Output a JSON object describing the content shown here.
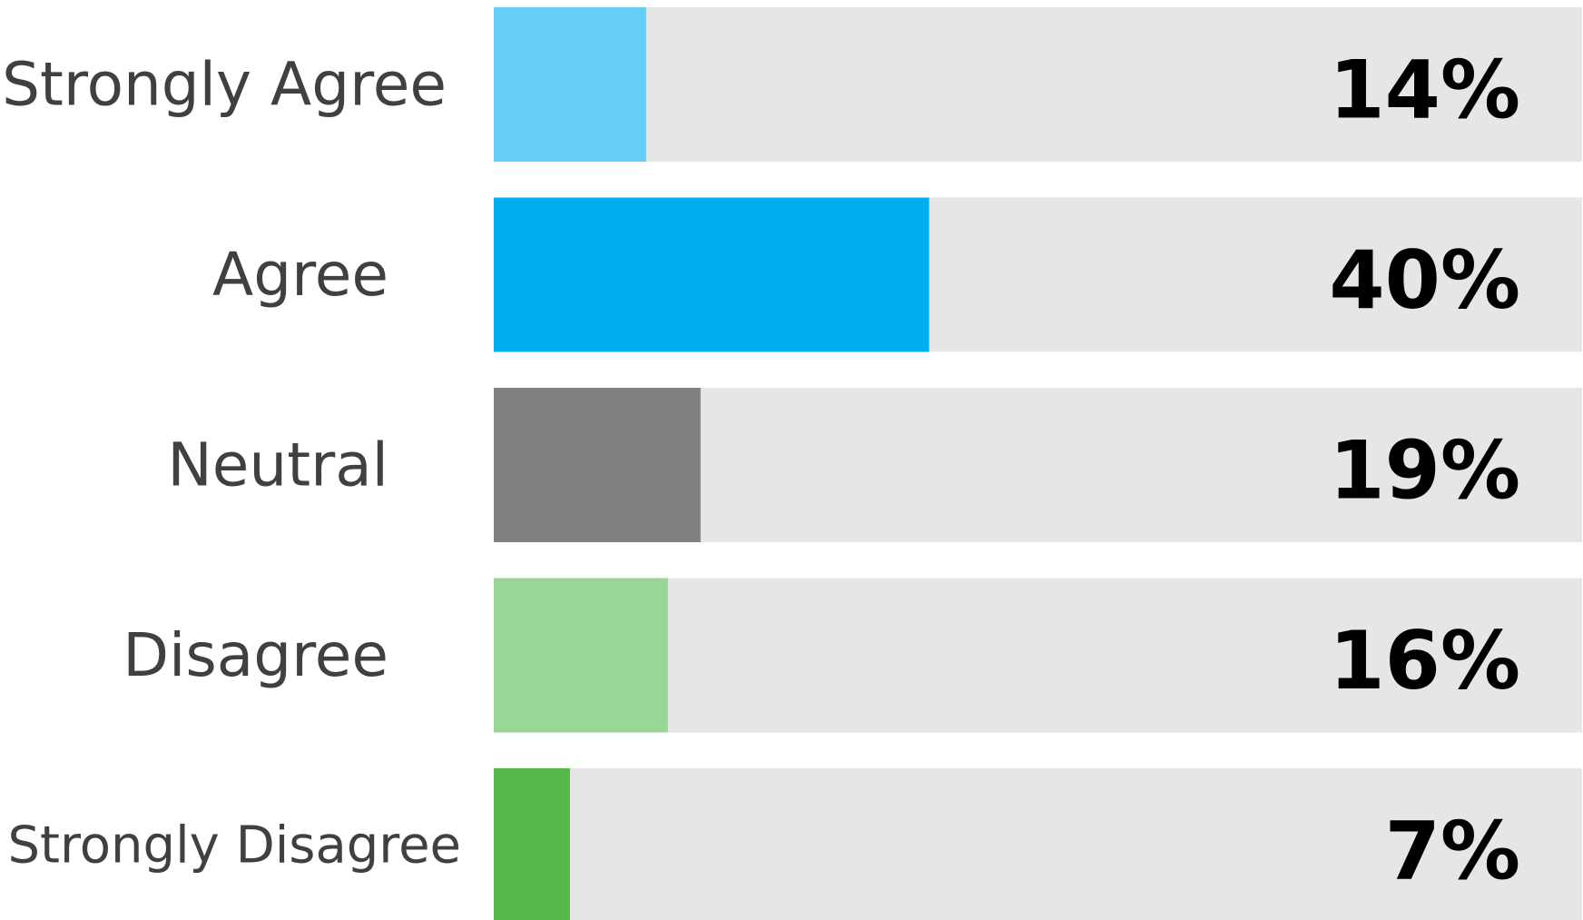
{
  "chart_data": {
    "type": "bar",
    "orientation": "horizontal",
    "categories": [
      "Strongly Agree",
      "Agree",
      "Neutral",
      "Disagree",
      "Strongly Disagree"
    ],
    "values": [
      14,
      40,
      19,
      16,
      7
    ],
    "value_labels": [
      "14%",
      "40%",
      "19%",
      "16%",
      "7%"
    ],
    "unit": "%",
    "xlim": [
      0,
      100
    ],
    "grid": false,
    "legend": "none",
    "title": "",
    "xlabel": "",
    "ylabel": ""
  },
  "colors": {
    "bar_colors": [
      "#66cdf5",
      "#00aeef",
      "#808080",
      "#99d594",
      "#55b848"
    ],
    "track": "#e6e6e6",
    "category_text": "#404040",
    "value_text": "#000000",
    "background": "#ffffff"
  }
}
